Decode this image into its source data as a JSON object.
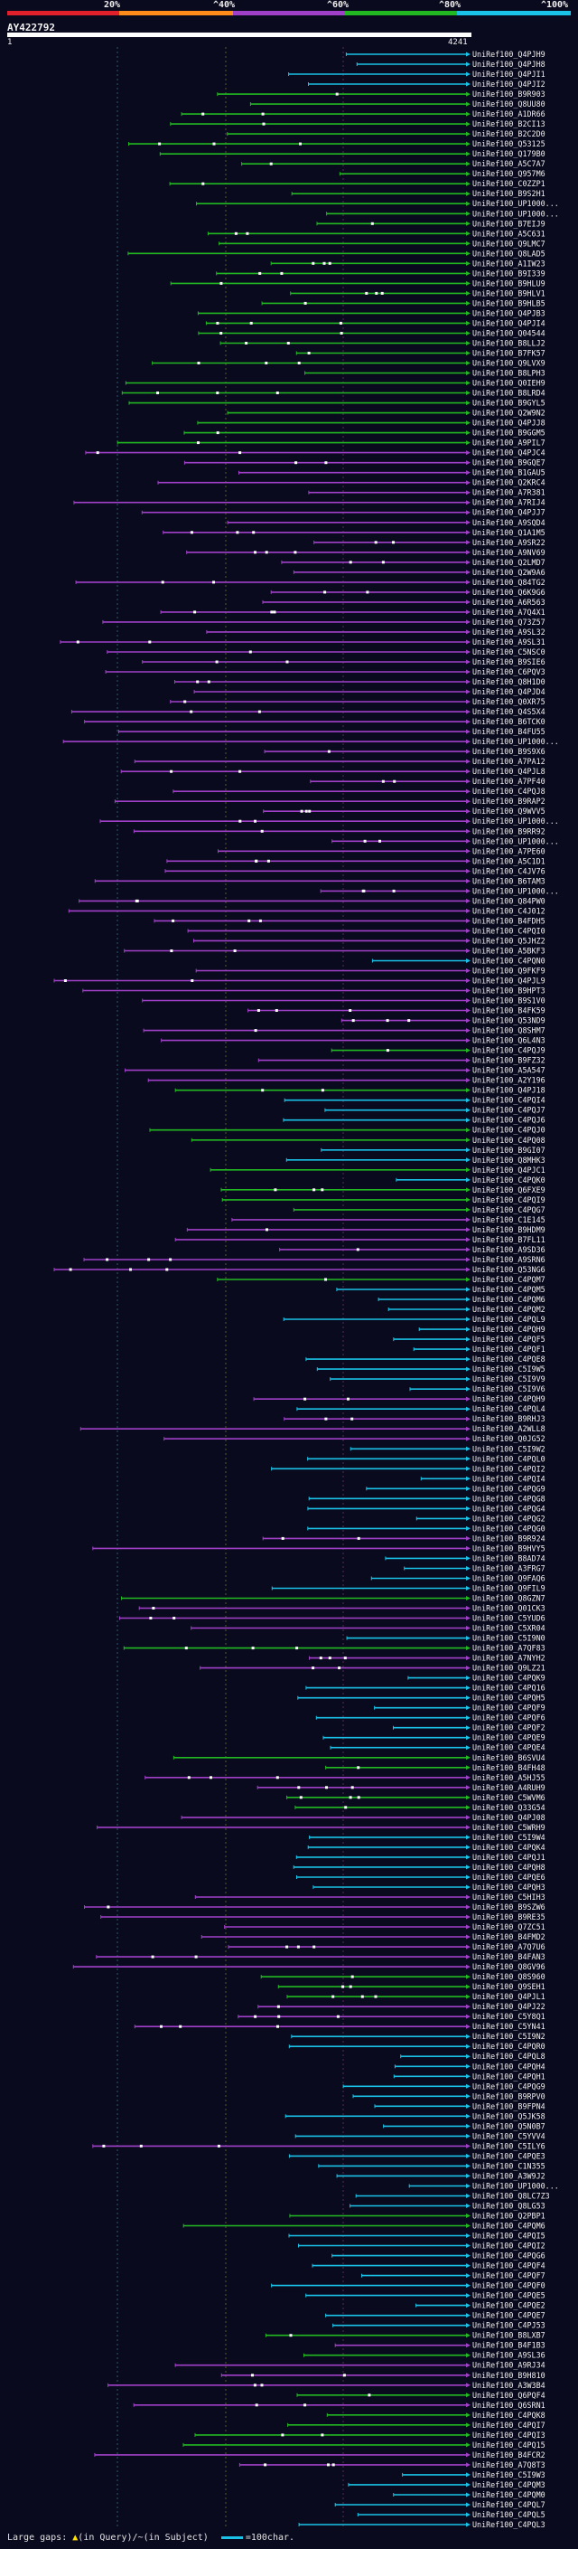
{
  "legend": {
    "thresholds": [
      "20%",
      "^40%",
      "^60%",
      "^80%",
      "^100%"
    ],
    "colors": [
      "#e0202a",
      "#ff8c1a",
      "#a040c8",
      "#22b822",
      "#19c2e6"
    ]
  },
  "query": {
    "name": "AY422792",
    "start": "1",
    "end": "4241"
  },
  "hit_prefix": "UniRef100_",
  "hits": [
    {
      "id": "Q4PJH9",
      "c": 4
    },
    {
      "id": "Q4PJH8",
      "c": 4
    },
    {
      "id": "Q4PJI1",
      "c": 4
    },
    {
      "id": "Q4PJI2",
      "c": 4
    },
    {
      "id": "B9R903",
      "c": 3
    },
    {
      "id": "Q8UU80",
      "c": 3
    },
    {
      "id": "A1DR66",
      "c": 3
    },
    {
      "id": "B2CI13",
      "c": 3
    },
    {
      "id": "B2C2D0",
      "c": 3
    },
    {
      "id": "Q53125",
      "c": 3
    },
    {
      "id": "Q179B0",
      "c": 3
    },
    {
      "id": "A5C7A7",
      "c": 3
    },
    {
      "id": "Q957M6",
      "c": 3
    },
    {
      "id": "C0ZZP1",
      "c": 3
    },
    {
      "id": "B9S2H1",
      "c": 3
    },
    {
      "id": "UP1000...",
      "c": 3
    },
    {
      "id": "UP1000...",
      "c": 3
    },
    {
      "id": "B7EIJ9",
      "c": 3
    },
    {
      "id": "A5C631",
      "c": 3
    },
    {
      "id": "Q9LMC7",
      "c": 3
    },
    {
      "id": "Q8LAD5",
      "c": 3
    },
    {
      "id": "A1IW23",
      "c": 3
    },
    {
      "id": "B9I339",
      "c": 3
    },
    {
      "id": "B9HLU9",
      "c": 3
    },
    {
      "id": "B9HLV1",
      "c": 3
    },
    {
      "id": "B9HLB5",
      "c": 3
    },
    {
      "id": "Q4PJB3",
      "c": 3
    },
    {
      "id": "Q4PJI4",
      "c": 3
    },
    {
      "id": "Q04544",
      "c": 3
    },
    {
      "id": "B8LLJ2",
      "c": 3
    },
    {
      "id": "B7FK57",
      "c": 3
    },
    {
      "id": "Q9LVX9",
      "c": 3
    },
    {
      "id": "B8LPH3",
      "c": 3
    },
    {
      "id": "Q0IEH9",
      "c": 3
    },
    {
      "id": "B8LRD4",
      "c": 3
    },
    {
      "id": "B9GYL5",
      "c": 3
    },
    {
      "id": "Q2W9N2",
      "c": 3
    },
    {
      "id": "Q4PJJ8",
      "c": 3
    },
    {
      "id": "B9GGM5",
      "c": 3
    },
    {
      "id": "A9PIL7",
      "c": 3
    },
    {
      "id": "Q4PJC4",
      "c": 2
    },
    {
      "id": "B9GQE7",
      "c": 2
    },
    {
      "id": "B1GAU5",
      "c": 2
    },
    {
      "id": "Q2KRC4",
      "c": 2
    },
    {
      "id": "A7R381",
      "c": 2
    },
    {
      "id": "A7RIJ4",
      "c": 2
    },
    {
      "id": "Q4PJJ7",
      "c": 2
    },
    {
      "id": "A9SQD4",
      "c": 2
    },
    {
      "id": "Q1A1M5",
      "c": 2
    },
    {
      "id": "A9SR22",
      "c": 2
    },
    {
      "id": "A9NV69",
      "c": 2
    },
    {
      "id": "Q2LMD7",
      "c": 2
    },
    {
      "id": "Q2W9A6",
      "c": 2
    },
    {
      "id": "Q84TG2",
      "c": 2
    },
    {
      "id": "Q6K9G6",
      "c": 2
    },
    {
      "id": "A6R563",
      "c": 2
    },
    {
      "id": "A7Q4X1",
      "c": 2
    },
    {
      "id": "Q73Z57",
      "c": 2
    },
    {
      "id": "A9SL32",
      "c": 2
    },
    {
      "id": "A9SL31",
      "c": 2
    },
    {
      "id": "C5NSC0",
      "c": 2
    },
    {
      "id": "B9SIE6",
      "c": 2
    },
    {
      "id": "C6PQV3",
      "c": 2
    },
    {
      "id": "Q8H1D0",
      "c": 2
    },
    {
      "id": "Q4PJD4",
      "c": 2
    },
    {
      "id": "Q0XR75",
      "c": 2
    },
    {
      "id": "Q4S5X4",
      "c": 2
    },
    {
      "id": "B6TCK0",
      "c": 2
    },
    {
      "id": "B4FU55",
      "c": 2
    },
    {
      "id": "UP1000...",
      "c": 2
    },
    {
      "id": "B9S9X6",
      "c": 2
    },
    {
      "id": "A7PA12",
      "c": 2
    },
    {
      "id": "Q4PJL8",
      "c": 2
    },
    {
      "id": "A7PF40",
      "c": 2
    },
    {
      "id": "C4PQJ8",
      "c": 2
    },
    {
      "id": "B9RAP2",
      "c": 2
    },
    {
      "id": "Q9WVV5",
      "c": 2
    },
    {
      "id": "UP1000...",
      "c": 2
    },
    {
      "id": "B9RR92",
      "c": 2
    },
    {
      "id": "UP1000...",
      "c": 2
    },
    {
      "id": "A7PE60",
      "c": 2
    },
    {
      "id": "A5C1D1",
      "c": 2
    },
    {
      "id": "C4JV76",
      "c": 2
    },
    {
      "id": "B6TAM3",
      "c": 2
    },
    {
      "id": "UP1000...",
      "c": 2
    },
    {
      "id": "Q84PW0",
      "c": 2
    },
    {
      "id": "C4J012",
      "c": 2
    },
    {
      "id": "B4FDH5",
      "c": 2
    },
    {
      "id": "C4PQI0",
      "c": 2
    },
    {
      "id": "Q5JHZ2",
      "c": 2
    },
    {
      "id": "A5BKF3",
      "c": 2
    },
    {
      "id": "C4PQN0",
      "c": 4
    },
    {
      "id": "Q9FKF9",
      "c": 2
    },
    {
      "id": "Q4PJL9",
      "c": 2
    },
    {
      "id": "B9HPT3",
      "c": 2
    },
    {
      "id": "B9S1V0",
      "c": 2
    },
    {
      "id": "B4FK59",
      "c": 2
    },
    {
      "id": "Q53ND9",
      "c": 2
    },
    {
      "id": "Q8SHM7",
      "c": 2
    },
    {
      "id": "Q6L4N3",
      "c": 2
    },
    {
      "id": "C4PQJ9",
      "c": 3
    },
    {
      "id": "B9FZ32",
      "c": 2
    },
    {
      "id": "A5A547",
      "c": 2
    },
    {
      "id": "A2Y196",
      "c": 2
    },
    {
      "id": "Q4PJ18",
      "c": 3
    },
    {
      "id": "C4PQI4",
      "c": 4
    },
    {
      "id": "C4PQJ7",
      "c": 4
    },
    {
      "id": "C4PQJ6",
      "c": 4
    },
    {
      "id": "C4PQJ0",
      "c": 3
    },
    {
      "id": "C4PQ08",
      "c": 3
    },
    {
      "id": "B9GI07",
      "c": 4
    },
    {
      "id": "Q8MHK3",
      "c": 4
    },
    {
      "id": "Q4PJC1",
      "c": 3
    },
    {
      "id": "C4PQK0",
      "c": 4
    },
    {
      "id": "Q6FXE9",
      "c": 3
    },
    {
      "id": "C4PQI9",
      "c": 3
    },
    {
      "id": "C4PQG7",
      "c": 3
    },
    {
      "id": "C1E145",
      "c": 2
    },
    {
      "id": "B9HDM9",
      "c": 2
    },
    {
      "id": "B7FL11",
      "c": 2
    },
    {
      "id": "A9SD36",
      "c": 2
    },
    {
      "id": "A9SRN6",
      "c": 2
    },
    {
      "id": "Q53NG6",
      "c": 2
    },
    {
      "id": "C4PQM7",
      "c": 3
    },
    {
      "id": "C4PQM5",
      "c": 4
    },
    {
      "id": "C4PQM6",
      "c": 4
    },
    {
      "id": "C4PQM2",
      "c": 4
    },
    {
      "id": "C4PQL9",
      "c": 4
    },
    {
      "id": "C4PQH9",
      "c": 4
    },
    {
      "id": "C4PQF5",
      "c": 4
    },
    {
      "id": "C4PQF1",
      "c": 4
    },
    {
      "id": "C4PQE8",
      "c": 4
    },
    {
      "id": "C5I9W5",
      "c": 4
    },
    {
      "id": "C5I9V9",
      "c": 4
    },
    {
      "id": "C5I9V6",
      "c": 4
    },
    {
      "id": "C4PQH9",
      "c": 2
    },
    {
      "id": "C4PQL4",
      "c": 4
    },
    {
      "id": "B9RHJ3",
      "c": 2
    },
    {
      "id": "A2WLL8",
      "c": 2
    },
    {
      "id": "Q0JG52",
      "c": 2
    },
    {
      "id": "C5I9W2",
      "c": 4
    },
    {
      "id": "C4PQL0",
      "c": 4
    },
    {
      "id": "C4PQI2",
      "c": 4
    },
    {
      "id": "C4PQI4",
      "c": 4
    },
    {
      "id": "C4PQG9",
      "c": 4
    },
    {
      "id": "C4PQG8",
      "c": 4
    },
    {
      "id": "C4PQG4",
      "c": 4
    },
    {
      "id": "C4PQG2",
      "c": 4
    },
    {
      "id": "C4PQG0",
      "c": 4
    },
    {
      "id": "B9R924",
      "c": 2
    },
    {
      "id": "B9HVY5",
      "c": 2
    },
    {
      "id": "B8AD74",
      "c": 4
    },
    {
      "id": "A3FRG7",
      "c": 4
    },
    {
      "id": "Q9FAQ6",
      "c": 4
    },
    {
      "id": "Q9FIL9",
      "c": 4
    },
    {
      "id": "Q8GZN7",
      "c": 3
    },
    {
      "id": "Q01CK3",
      "c": 2
    },
    {
      "id": "C5YUD6",
      "c": 2
    },
    {
      "id": "C5XR04",
      "c": 2
    },
    {
      "id": "C5I9N0",
      "c": 4
    },
    {
      "id": "A7QF83",
      "c": 3
    },
    {
      "id": "A7NYH2",
      "c": 2
    },
    {
      "id": "Q9LZ21",
      "c": 2
    },
    {
      "id": "C4PQK9",
      "c": 4
    },
    {
      "id": "C4PQ16",
      "c": 4
    },
    {
      "id": "C4PQH5",
      "c": 4
    },
    {
      "id": "C4PQF9",
      "c": 4
    },
    {
      "id": "C4PQF6",
      "c": 4
    },
    {
      "id": "C4PQF2",
      "c": 4
    },
    {
      "id": "C4PQE9",
      "c": 4
    },
    {
      "id": "C4PQE4",
      "c": 4
    },
    {
      "id": "B6SVU4",
      "c": 3
    },
    {
      "id": "B4FH48",
      "c": 3
    },
    {
      "id": "A5HJ55",
      "c": 2
    },
    {
      "id": "A4RUH9",
      "c": 2
    },
    {
      "id": "C5WVM6",
      "c": 3
    },
    {
      "id": "Q33G54",
      "c": 3
    },
    {
      "id": "Q4PJ08",
      "c": 2
    },
    {
      "id": "C5WRH9",
      "c": 2
    },
    {
      "id": "C5I9W4",
      "c": 4
    },
    {
      "id": "C4PQK4",
      "c": 4
    },
    {
      "id": "C4PQJ1",
      "c": 4
    },
    {
      "id": "C4PQH8",
      "c": 4
    },
    {
      "id": "C4PQE6",
      "c": 4
    },
    {
      "id": "C4PQH3",
      "c": 4
    },
    {
      "id": "C5HIH3",
      "c": 2
    },
    {
      "id": "B9SZW6",
      "c": 2
    },
    {
      "id": "B9RE35",
      "c": 2
    },
    {
      "id": "Q7ZC51",
      "c": 2
    },
    {
      "id": "B4FMD2",
      "c": 2
    },
    {
      "id": "A7Q7U6",
      "c": 2
    },
    {
      "id": "B4FAN3",
      "c": 2
    },
    {
      "id": "Q8GV96",
      "c": 2
    },
    {
      "id": "Q8S960",
      "c": 3
    },
    {
      "id": "Q9SEH1",
      "c": 3
    },
    {
      "id": "Q4PJL1",
      "c": 3
    },
    {
      "id": "Q4PJ22",
      "c": 2
    },
    {
      "id": "C5Y8Q1",
      "c": 2
    },
    {
      "id": "C5YN41",
      "c": 2
    },
    {
      "id": "C5I9N2",
      "c": 4
    },
    {
      "id": "C4PQR0",
      "c": 4
    },
    {
      "id": "C4PQL8",
      "c": 4
    },
    {
      "id": "C4PQH4",
      "c": 4
    },
    {
      "id": "C4PQH1",
      "c": 4
    },
    {
      "id": "C4PQG9",
      "c": 4
    },
    {
      "id": "B9RPV0",
      "c": 4
    },
    {
      "id": "B9FPN4",
      "c": 4
    },
    {
      "id": "Q5JK58",
      "c": 4
    },
    {
      "id": "Q5N0B7",
      "c": 4
    },
    {
      "id": "C5YVV4",
      "c": 4
    },
    {
      "id": "C5ILY6",
      "c": 2
    },
    {
      "id": "C4PQE3",
      "c": 4
    },
    {
      "id": "C1N355",
      "c": 4
    },
    {
      "id": "A3W9J2",
      "c": 4
    },
    {
      "id": "UP1000...",
      "c": 4
    },
    {
      "id": "Q8LC7Z3",
      "c": 4
    },
    {
      "id": "Q8LG53",
      "c": 4
    },
    {
      "id": "Q2PBP1",
      "c": 3
    },
    {
      "id": "C4PQM6",
      "c": 3
    },
    {
      "id": "C4PQI5",
      "c": 4
    },
    {
      "id": "C4PQI2",
      "c": 4
    },
    {
      "id": "C4PQG6",
      "c": 4
    },
    {
      "id": "C4PQF4",
      "c": 4
    },
    {
      "id": "C4PQF7",
      "c": 4
    },
    {
      "id": "C4PQF0",
      "c": 4
    },
    {
      "id": "C4PQE5",
      "c": 4
    },
    {
      "id": "C4PQE2",
      "c": 4
    },
    {
      "id": "C4PQE7",
      "c": 4
    },
    {
      "id": "C4PJ53",
      "c": 4
    },
    {
      "id": "B8LXB7",
      "c": 3
    },
    {
      "id": "B4F1B3",
      "c": 2
    },
    {
      "id": "A9SL36",
      "c": 3
    },
    {
      "id": "A9RJ34",
      "c": 2
    },
    {
      "id": "B9H810",
      "c": 2
    },
    {
      "id": "A3W3B4",
      "c": 2
    },
    {
      "id": "Q6PQF4",
      "c": 3
    },
    {
      "id": "Q6SRN1",
      "c": 2
    },
    {
      "id": "C4PQK8",
      "c": 3
    },
    {
      "id": "C4PQI7",
      "c": 3
    },
    {
      "id": "C4PQI3",
      "c": 3
    },
    {
      "id": "C4PQ15",
      "c": 3
    },
    {
      "id": "B4FCR2",
      "c": 2
    },
    {
      "id": "A7Q8T3",
      "c": 2
    },
    {
      "id": "C5I9W3",
      "c": 4
    },
    {
      "id": "C4PQM3",
      "c": 4
    },
    {
      "id": "C4PQM0",
      "c": 4
    },
    {
      "id": "C4PQL7",
      "c": 4
    },
    {
      "id": "C4PQL5",
      "c": 4
    },
    {
      "id": "C4PQL3",
      "c": 4
    }
  ],
  "footer": {
    "large_gaps_label": "Large gaps:",
    "in_query_text": "(in Query)/",
    "in_subject_marker": "~",
    "in_subject_text": "(in Subject)",
    "scale_text": "=100char."
  }
}
